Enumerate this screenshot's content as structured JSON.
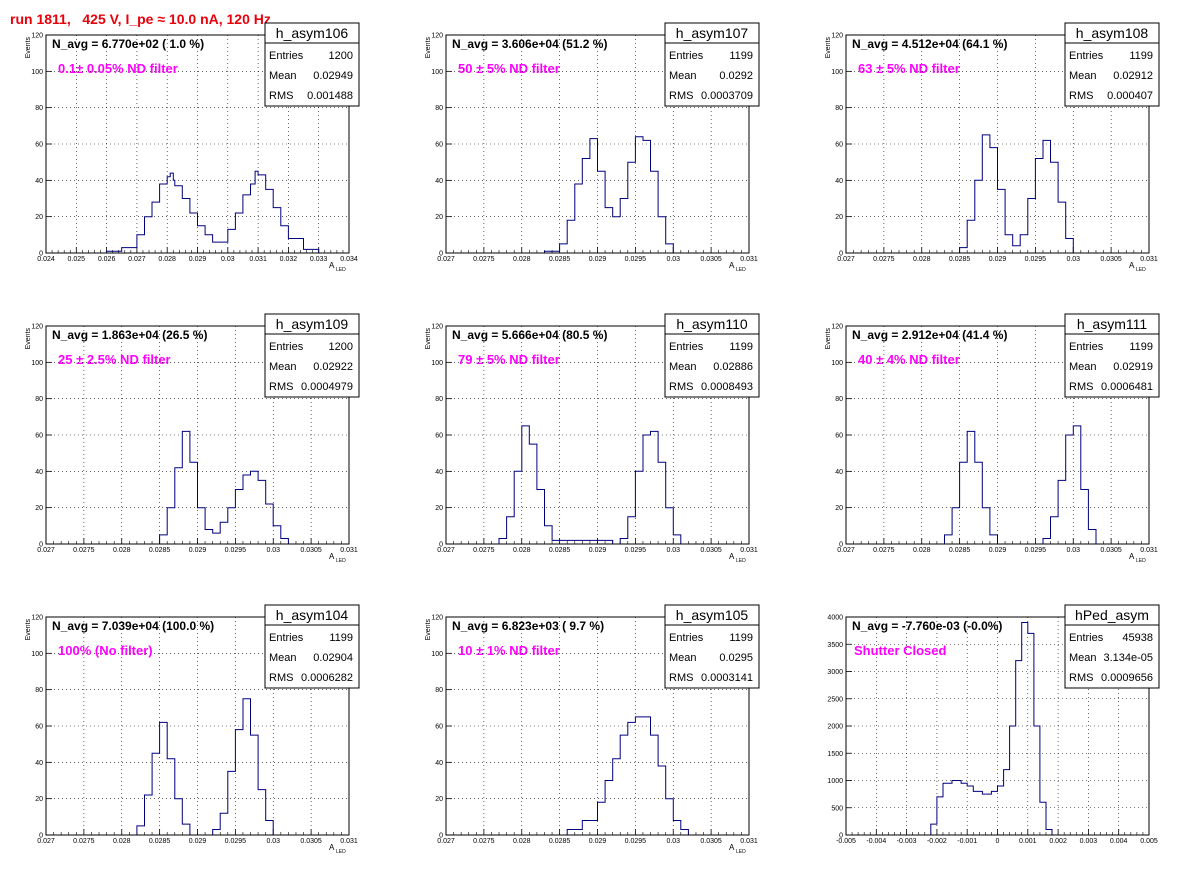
{
  "title": "run 1811,   425 V, I_pe ≈ 10.0 nA, 120 Hz",
  "colors": {
    "title": "#e8000b",
    "annotation": "#ff00ff",
    "histogram": "#00007f",
    "frame": "#000000",
    "grid": "#000000"
  },
  "chart_data": [
    {
      "type": "histogram",
      "name": "h_asym106",
      "navg": "N_avg = 6.770e+02 ( 1.0 %)",
      "note": "0.1± 0.05% ND filter",
      "ylabel": "Events",
      "xlabel": "A",
      "xlabel_sub": "LED",
      "stats": [
        [
          "Entries",
          "1200"
        ],
        [
          "Mean",
          "0.02949"
        ],
        [
          "RMS",
          "0.001488"
        ]
      ],
      "xlim": [
        0.024,
        0.034
      ],
      "ylim": [
        0,
        120
      ],
      "xticks": [
        "0.024",
        "0.025",
        "0.026",
        "0.027",
        "0.028",
        "0.029",
        "0.03",
        "0.031",
        "0.032",
        "0.033",
        "0.034"
      ],
      "yticks": [
        "0",
        "20",
        "40",
        "60",
        "80",
        "100",
        "120"
      ],
      "x": [
        0.0255,
        0.026,
        0.0265,
        0.027,
        0.02725,
        0.0275,
        0.02775,
        0.028,
        0.0281,
        0.0282,
        0.02825,
        0.0285,
        0.02875,
        0.029,
        0.02925,
        0.0295,
        0.0298,
        0.03,
        0.03025,
        0.0305,
        0.03075,
        0.0309,
        0.031,
        0.03125,
        0.0315,
        0.03175,
        0.032,
        0.0325,
        0.033
      ],
      "y": [
        0,
        1,
        3,
        10,
        20,
        28,
        38,
        42,
        44,
        40,
        37,
        30,
        22,
        15,
        10,
        6,
        6,
        13,
        22,
        32,
        38,
        45,
        43,
        35,
        25,
        15,
        8,
        2,
        0
      ]
    },
    {
      "type": "histogram",
      "name": "h_asym107",
      "navg": "N_avg = 3.606e+04 (51.2 %)",
      "note": "50 ± 5% ND filter",
      "ylabel": "Events",
      "xlabel": "A",
      "xlabel_sub": "LED",
      "stats": [
        [
          "Entries",
          "1199"
        ],
        [
          "Mean",
          "0.0292"
        ],
        [
          "RMS",
          "0.0003709"
        ]
      ],
      "xlim": [
        0.027,
        0.031
      ],
      "ylim": [
        0,
        120
      ],
      "xticks": [
        "0.027",
        "0.0275",
        "0.028",
        "0.0285",
        "0.029",
        "0.0295",
        "0.03",
        "0.0305",
        "0.031"
      ],
      "yticks": [
        "0",
        "20",
        "40",
        "60",
        "80",
        "100",
        "120"
      ],
      "x": [
        0.0281,
        0.0283,
        0.0285,
        0.0286,
        0.0287,
        0.0288,
        0.0289,
        0.029,
        0.0291,
        0.0292,
        0.0293,
        0.0294,
        0.0295,
        0.0296,
        0.0297,
        0.0298,
        0.0299,
        0.03
      ],
      "y": [
        0,
        1,
        5,
        18,
        38,
        52,
        63,
        45,
        25,
        20,
        30,
        50,
        64,
        62,
        45,
        20,
        5,
        0
      ]
    },
    {
      "type": "histogram",
      "name": "h_asym108",
      "navg": "N_avg = 4.512e+04 (64.1 %)",
      "note": "63 ± 5% ND filter",
      "ylabel": "Events",
      "xlabel": "A",
      "xlabel_sub": "LED",
      "stats": [
        [
          "Entries",
          "1199"
        ],
        [
          "Mean",
          "0.02912"
        ],
        [
          "RMS",
          "0.000407"
        ]
      ],
      "xlim": [
        0.027,
        0.031
      ],
      "ylim": [
        0,
        120
      ],
      "xticks": [
        "0.027",
        "0.0275",
        "0.028",
        "0.0285",
        "0.029",
        "0.0295",
        "0.03",
        "0.0305",
        "0.031"
      ],
      "yticks": [
        "0",
        "20",
        "40",
        "60",
        "80",
        "100",
        "120"
      ],
      "x": [
        0.0283,
        0.0285,
        0.0286,
        0.0287,
        0.0288,
        0.0289,
        0.029,
        0.0291,
        0.0292,
        0.0293,
        0.0294,
        0.0295,
        0.0296,
        0.0297,
        0.0298,
        0.0299,
        0.03
      ],
      "y": [
        0,
        3,
        18,
        40,
        65,
        58,
        35,
        10,
        4,
        10,
        30,
        52,
        62,
        50,
        28,
        8,
        0
      ]
    },
    {
      "type": "histogram",
      "name": "h_asym109",
      "navg": "N_avg = 1.863e+04 (26.5 %)",
      "note": "25 ± 2.5% ND filter",
      "ylabel": "Events",
      "xlabel": "A",
      "xlabel_sub": "LED",
      "stats": [
        [
          "Entries",
          "1200"
        ],
        [
          "Mean",
          "0.02922"
        ],
        [
          "RMS",
          "0.0004979"
        ]
      ],
      "xlim": [
        0.027,
        0.031
      ],
      "ylim": [
        0,
        120
      ],
      "xticks": [
        "0.027",
        "0.0275",
        "0.028",
        "0.0285",
        "0.029",
        "0.0295",
        "0.03",
        "0.0305",
        "0.031"
      ],
      "yticks": [
        "0",
        "20",
        "40",
        "60",
        "80",
        "100",
        "120"
      ],
      "x": [
        0.0283,
        0.0285,
        0.0286,
        0.0287,
        0.0288,
        0.0289,
        0.029,
        0.0291,
        0.0292,
        0.0293,
        0.0294,
        0.0295,
        0.0296,
        0.0297,
        0.0298,
        0.0299,
        0.03,
        0.0301,
        0.0302
      ],
      "y": [
        0,
        5,
        20,
        42,
        62,
        45,
        20,
        8,
        6,
        12,
        20,
        30,
        38,
        40,
        35,
        22,
        10,
        3,
        0
      ]
    },
    {
      "type": "histogram",
      "name": "h_asym110",
      "navg": "N_avg = 5.666e+04 (80.5 %)",
      "note": "79 ± 5% ND filter",
      "ylabel": "Events",
      "xlabel": "A",
      "xlabel_sub": "LED",
      "stats": [
        [
          "Entries",
          "1199"
        ],
        [
          "Mean",
          "0.02886"
        ],
        [
          "RMS",
          "0.0008493"
        ]
      ],
      "xlim": [
        0.027,
        0.031
      ],
      "ylim": [
        0,
        120
      ],
      "xticks": [
        "0.027",
        "0.0275",
        "0.028",
        "0.0285",
        "0.029",
        "0.0295",
        "0.03",
        "0.0305",
        "0.031"
      ],
      "yticks": [
        "0",
        "20",
        "40",
        "60",
        "80",
        "100",
        "120"
      ],
      "x": [
        0.0276,
        0.0277,
        0.0278,
        0.0279,
        0.028,
        0.0281,
        0.0282,
        0.0283,
        0.0284,
        0.0292,
        0.0293,
        0.0294,
        0.0295,
        0.0296,
        0.0297,
        0.0298,
        0.0299,
        0.03,
        0.0301
      ],
      "y": [
        0,
        3,
        15,
        40,
        65,
        55,
        30,
        10,
        2,
        0,
        3,
        15,
        40,
        60,
        62,
        45,
        20,
        5,
        0
      ]
    },
    {
      "type": "histogram",
      "name": "h_asym111",
      "navg": "N_avg = 2.912e+04 (41.4 %)",
      "note": "40 ± 4% ND filter",
      "ylabel": "Events",
      "xlabel": "A",
      "xlabel_sub": "LED",
      "stats": [
        [
          "Entries",
          "1199"
        ],
        [
          "Mean",
          "0.02919"
        ],
        [
          "RMS",
          "0.0006481"
        ]
      ],
      "xlim": [
        0.027,
        0.031
      ],
      "ylim": [
        0,
        120
      ],
      "xticks": [
        "0.027",
        "0.0275",
        "0.028",
        "0.0285",
        "0.029",
        "0.0295",
        "0.03",
        "0.0305",
        "0.031"
      ],
      "yticks": [
        "0",
        "20",
        "40",
        "60",
        "80",
        "100",
        "120"
      ],
      "x": [
        0.0282,
        0.0283,
        0.0284,
        0.0285,
        0.0286,
        0.0287,
        0.0288,
        0.0289,
        0.029,
        0.0296,
        0.0297,
        0.0298,
        0.0299,
        0.03,
        0.0301,
        0.0302,
        0.0303
      ],
      "y": [
        0,
        5,
        20,
        45,
        62,
        45,
        20,
        5,
        0,
        3,
        15,
        35,
        60,
        65,
        30,
        8,
        0
      ]
    },
    {
      "type": "histogram",
      "name": "h_asym104",
      "navg": "N_avg = 7.039e+04 (100.0 %)",
      "note": "100% (No filter)",
      "ylabel": "Events",
      "xlabel": "A",
      "xlabel_sub": "LED",
      "stats": [
        [
          "Entries",
          "1199"
        ],
        [
          "Mean",
          "0.02904"
        ],
        [
          "RMS",
          "0.0006282"
        ]
      ],
      "xlim": [
        0.027,
        0.031
      ],
      "ylim": [
        0,
        120
      ],
      "xticks": [
        "0.027",
        "0.0275",
        "0.028",
        "0.0285",
        "0.029",
        "0.0295",
        "0.03",
        "0.0305",
        "0.031"
      ],
      "yticks": [
        "0",
        "20",
        "40",
        "60",
        "80",
        "100",
        "120"
      ],
      "x": [
        0.028,
        0.0282,
        0.0283,
        0.0284,
        0.0285,
        0.0286,
        0.0287,
        0.0288,
        0.0289,
        0.0292,
        0.0293,
        0.0294,
        0.0295,
        0.0296,
        0.0297,
        0.0298,
        0.0299,
        0.03
      ],
      "y": [
        0,
        5,
        22,
        45,
        62,
        42,
        20,
        6,
        0,
        3,
        12,
        35,
        58,
        75,
        55,
        25,
        8,
        0
      ]
    },
    {
      "type": "histogram",
      "name": "h_asym105",
      "navg": "N_avg = 6.823e+03 ( 9.7 %)",
      "note": "10 ± 1% ND filter",
      "ylabel": "Events",
      "xlabel": "A",
      "xlabel_sub": "LED",
      "stats": [
        [
          "Entries",
          "1199"
        ],
        [
          "Mean",
          "0.0295"
        ],
        [
          "RMS",
          "0.0003141"
        ]
      ],
      "xlim": [
        0.027,
        0.031
      ],
      "ylim": [
        0,
        120
      ],
      "xticks": [
        "0.027",
        "0.0275",
        "0.028",
        "0.0285",
        "0.029",
        "0.0295",
        "0.03",
        "0.0305",
        "0.031"
      ],
      "yticks": [
        "0",
        "20",
        "40",
        "60",
        "80",
        "100",
        "120"
      ],
      "x": [
        0.0284,
        0.0286,
        0.0288,
        0.029,
        0.0291,
        0.0292,
        0.0293,
        0.0294,
        0.0295,
        0.0296,
        0.0297,
        0.0298,
        0.0299,
        0.03,
        0.0301,
        0.0302
      ],
      "y": [
        0,
        3,
        8,
        18,
        30,
        42,
        55,
        62,
        65,
        65,
        55,
        38,
        20,
        8,
        3,
        0
      ]
    },
    {
      "type": "histogram",
      "name": "hPed_asym",
      "navg": "N_avg = -7.760e-03 (-0.0%)",
      "note": "Shutter Closed",
      "ylabel": "",
      "xlabel": "",
      "xlabel_sub": "",
      "stats": [
        [
          "Entries",
          "45938"
        ],
        [
          "Mean",
          "3.134e-05"
        ],
        [
          "RMS",
          "0.0009656"
        ]
      ],
      "xlim": [
        -0.005,
        0.005
      ],
      "ylim": [
        0,
        4000
      ],
      "xticks": [
        "-0.005",
        "-0.004",
        "-0.003",
        "-0.002",
        "-0.001",
        "0",
        "0.001",
        "0.002",
        "0.003",
        "0.004",
        "0.005"
      ],
      "yticks": [
        "0",
        "500",
        "1000",
        "1500",
        "2000",
        "2500",
        "3000",
        "3500",
        "4000"
      ],
      "x": [
        -0.0025,
        -0.0022,
        -0.002,
        -0.0018,
        -0.0015,
        -0.0012,
        -0.001,
        -0.0008,
        -0.0005,
        -0.0002,
        0,
        0.0002,
        0.0004,
        0.0006,
        0.0008,
        0.001,
        0.0012,
        0.0014,
        0.0016,
        0.0018
      ],
      "y": [
        0,
        200,
        700,
        950,
        1000,
        950,
        900,
        800,
        750,
        800,
        900,
        1200,
        2000,
        3200,
        3900,
        3700,
        2000,
        600,
        100,
        0
      ]
    }
  ]
}
